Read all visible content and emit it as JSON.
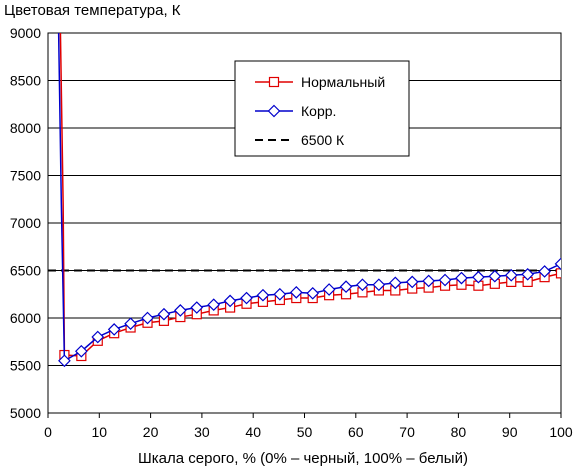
{
  "chart_data": {
    "type": "line",
    "title": "Цветовая температура, К",
    "xlabel": "Шкала серого, % (0% – черный, 100% – белый)",
    "ylabel": "",
    "xlim": [
      0,
      100
    ],
    "ylim": [
      5000,
      9000
    ],
    "xticks": [
      "0",
      "10",
      "20",
      "30",
      "40",
      "50",
      "60",
      "70",
      "80",
      "90",
      "100"
    ],
    "yticks": [
      "5000",
      "5500",
      "6000",
      "6500",
      "7000",
      "7500",
      "8000",
      "8500",
      "9000"
    ],
    "grid": "horizontal",
    "legend_position": "top-right",
    "colors": {
      "normal": "#e00000",
      "corr": "#0000cc",
      "target": "#000000",
      "grid": "#000000"
    },
    "series": [
      {
        "name": "Нормальный",
        "color": "#e00000",
        "marker": "square",
        "x": [
          3.2,
          6.5,
          9.7,
          12.9,
          16.1,
          19.4,
          22.6,
          25.8,
          29.0,
          32.3,
          35.5,
          38.7,
          41.9,
          45.2,
          48.4,
          51.6,
          54.8,
          58.1,
          61.3,
          64.5,
          67.7,
          71.0,
          74.2,
          77.4,
          80.6,
          83.9,
          87.1,
          90.3,
          93.5,
          96.8,
          100
        ],
        "y": [
          5610,
          5600,
          5760,
          5840,
          5900,
          5950,
          5970,
          6010,
          6040,
          6080,
          6110,
          6150,
          6170,
          6190,
          6210,
          6210,
          6240,
          6250,
          6270,
          6290,
          6290,
          6310,
          6320,
          6340,
          6350,
          6340,
          6360,
          6380,
          6380,
          6430,
          6470
        ]
      },
      {
        "name": "Корр.",
        "color": "#0000cc",
        "marker": "diamond",
        "x": [
          3.2,
          6.5,
          9.7,
          12.9,
          16.1,
          19.4,
          22.6,
          25.8,
          29.0,
          32.3,
          35.5,
          38.7,
          41.9,
          45.2,
          48.4,
          51.6,
          54.8,
          58.1,
          61.3,
          64.5,
          67.7,
          71.0,
          74.2,
          77.4,
          80.6,
          83.9,
          87.1,
          90.3,
          93.5,
          96.8,
          100
        ],
        "y": [
          5550,
          5650,
          5800,
          5880,
          5940,
          6000,
          6040,
          6080,
          6110,
          6140,
          6180,
          6210,
          6240,
          6250,
          6270,
          6260,
          6300,
          6330,
          6350,
          6350,
          6370,
          6380,
          6390,
          6400,
          6420,
          6430,
          6440,
          6450,
          6460,
          6490,
          6570
        ]
      },
      {
        "name": "6500 К",
        "color": "#000000",
        "style": "dashed",
        "x": [
          0,
          100
        ],
        "y": [
          6500,
          6500
        ]
      }
    ]
  }
}
